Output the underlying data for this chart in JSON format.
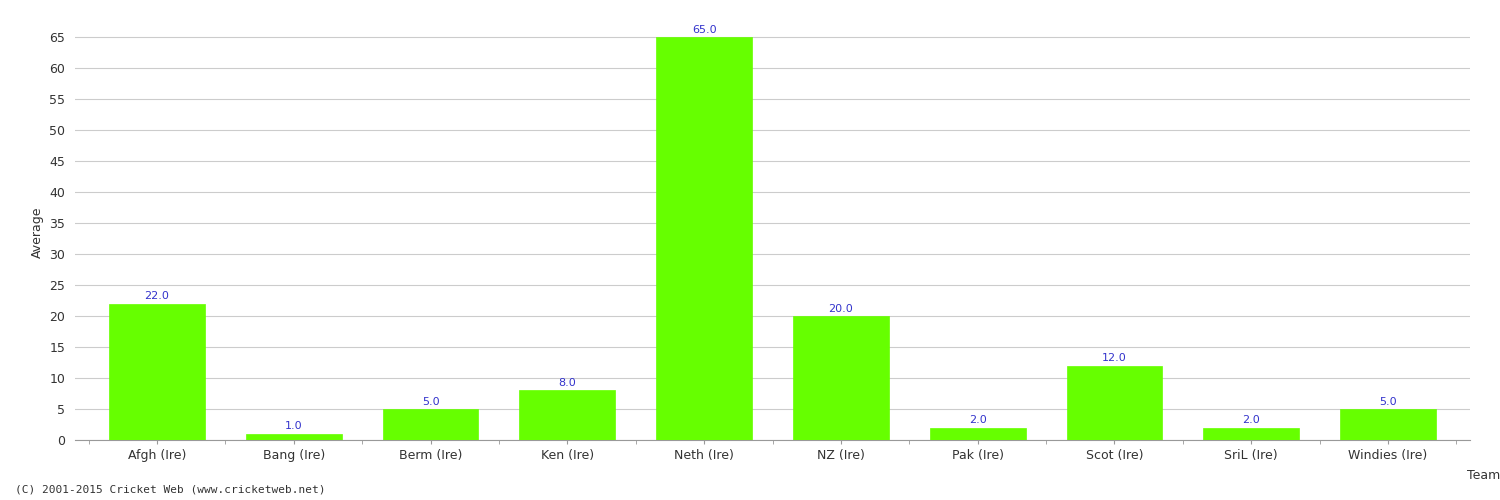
{
  "categories": [
    "Afgh (Ire)",
    "Bang (Ire)",
    "Berm (Ire)",
    "Ken (Ire)",
    "Neth (Ire)",
    "NZ (Ire)",
    "Pak (Ire)",
    "Scot (Ire)",
    "SriL (Ire)",
    "Windies (Ire)"
  ],
  "values": [
    22.0,
    1.0,
    5.0,
    8.0,
    65.0,
    20.0,
    2.0,
    12.0,
    2.0,
    5.0
  ],
  "bar_color": "#66ff00",
  "bar_edge_color": "#66ff00",
  "value_label_color": "#3333cc",
  "xlabel": "Team",
  "ylabel": "Average",
  "ylim": [
    0,
    67
  ],
  "yticks": [
    0,
    5,
    10,
    15,
    20,
    25,
    30,
    35,
    40,
    45,
    50,
    55,
    60,
    65
  ],
  "axis_label_fontsize": 9,
  "tick_fontsize": 9,
  "value_fontsize": 8,
  "footer_text": "(C) 2001-2015 Cricket Web (www.cricketweb.net)",
  "footer_fontsize": 8,
  "footer_color": "#333333",
  "background_color": "#ffffff",
  "grid_color": "#cccccc",
  "grid_linewidth": 0.8,
  "bar_width": 0.7
}
